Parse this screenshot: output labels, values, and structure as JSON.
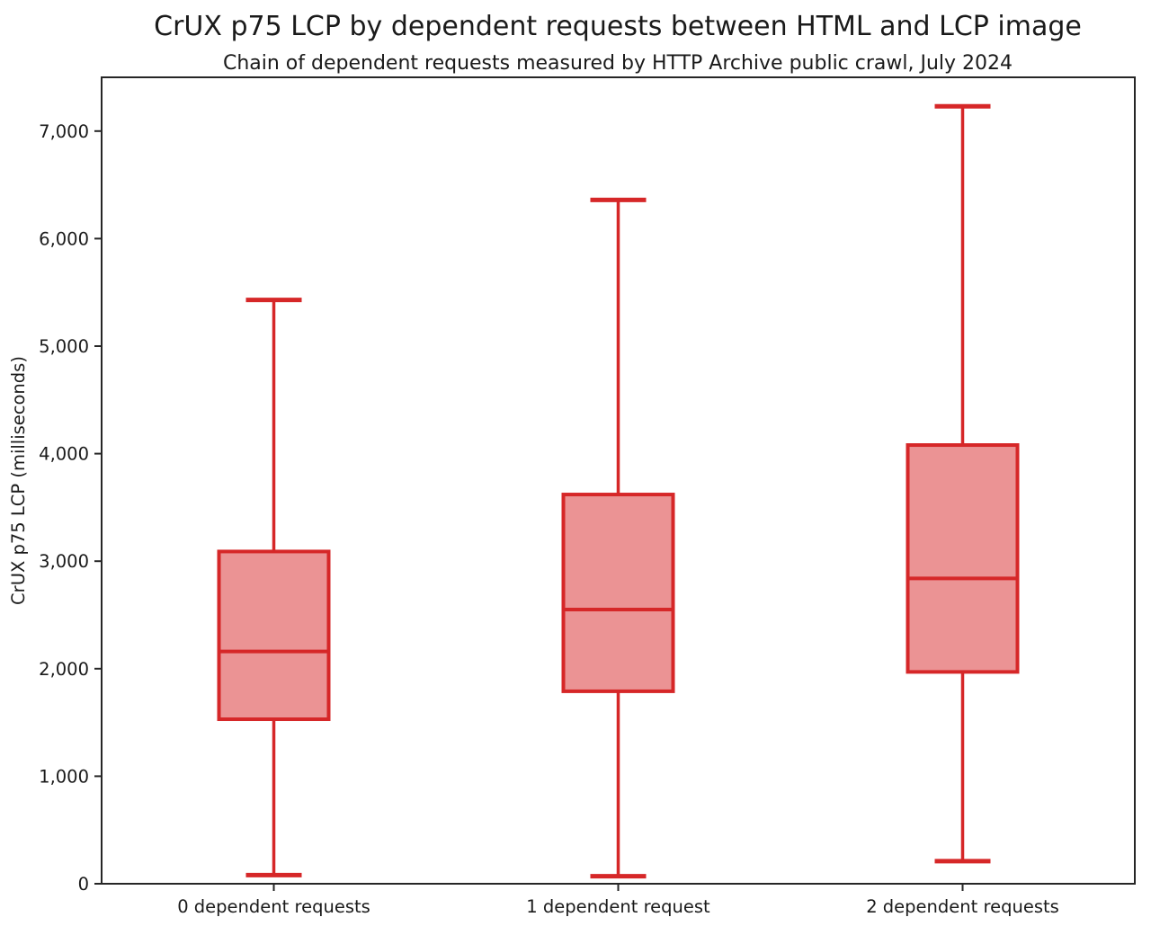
{
  "figure": {
    "title": "CrUX p75 LCP by dependent requests between HTML and LCP image",
    "subtitle": "Chain of dependent requests measured by HTTP Archive public crawl, July 2024"
  },
  "chart_data": {
    "type": "boxplot",
    "title": "CrUX p75 LCP by dependent requests between HTML and LCP image",
    "subtitle": "Chain of dependent requests measured by HTTP Archive public crawl, July 2024",
    "xlabel": "",
    "ylabel": "CrUX p75 LCP (milliseconds)",
    "ylim": [
      0,
      7500
    ],
    "yticks": [
      0,
      1000,
      2000,
      3000,
      4000,
      5000,
      6000,
      7000
    ],
    "ytick_format": "comma",
    "grid": false,
    "legend": "none",
    "categories": [
      "0 dependent requests",
      "1 dependent request",
      "2 dependent requests"
    ],
    "series": [
      {
        "label": "0 dependent requests",
        "whisker_low": 80,
        "q1": 1530,
        "median": 2160,
        "q3": 3090,
        "whisker_high": 5430
      },
      {
        "label": "1 dependent request",
        "whisker_low": 70,
        "q1": 1790,
        "median": 2550,
        "q3": 3620,
        "whisker_high": 6360
      },
      {
        "label": "2 dependent requests",
        "whisker_low": 210,
        "q1": 1970,
        "median": 2840,
        "q3": 4080,
        "whisker_high": 7230
      }
    ],
    "colors": {
      "box_edge": "#d62728",
      "box_fill": "#eb9394",
      "median": "#d62728",
      "whisker": "#d62728",
      "axis": "#262626",
      "text": "#1a1a1a",
      "background": "#ffffff"
    }
  }
}
